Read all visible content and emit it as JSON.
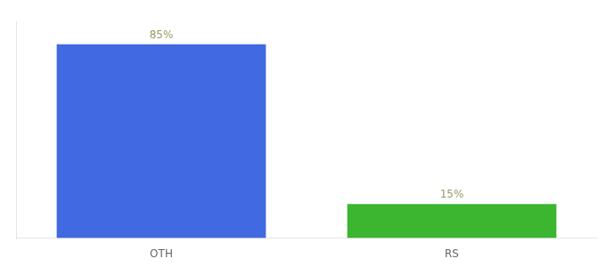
{
  "chart_data": {
    "type": "bar",
    "categories": [
      "OTH",
      "RS"
    ],
    "values": [
      85,
      15
    ],
    "value_labels": [
      "85%",
      "15%"
    ],
    "colors": [
      "#4169e1",
      "#3cb531"
    ],
    "ylim": [
      0,
      95
    ],
    "data_labels": true,
    "tick_labels": "x",
    "grid": false
  }
}
